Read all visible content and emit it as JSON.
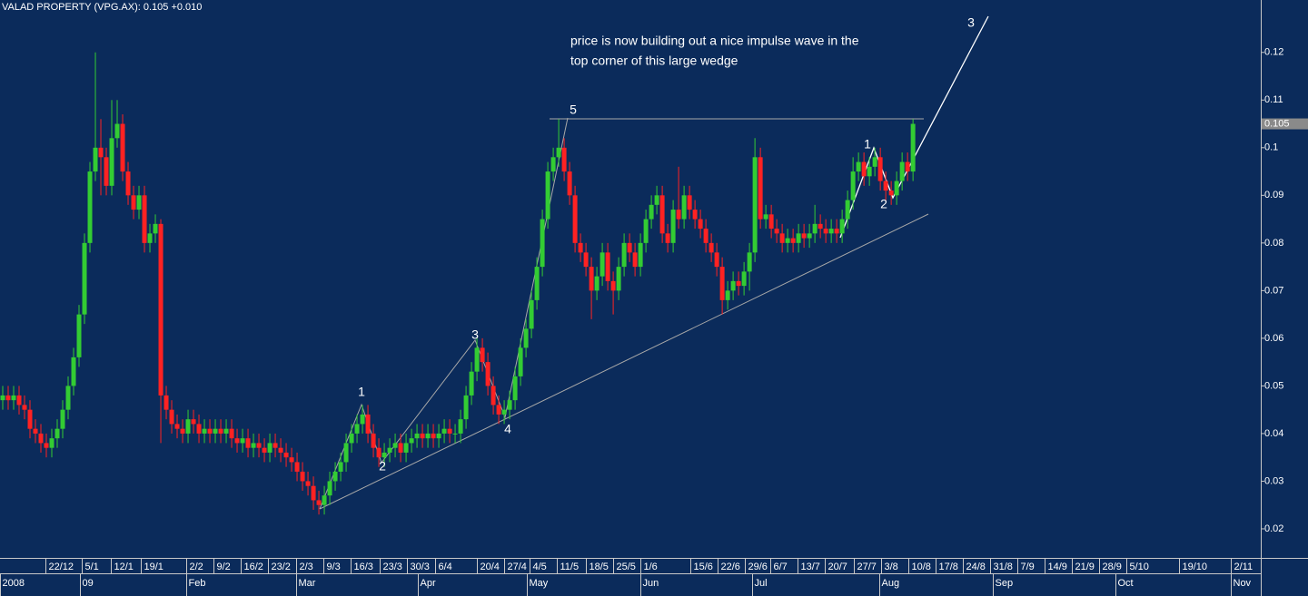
{
  "chart_data": {
    "type": "candlestick",
    "title": "VALAD PROPERTY  (VPG.AX): 0.105 +0.010",
    "last_price": 0.105,
    "note": [
      "price is now building out a nice impulse wave in the",
      "top corner of this large wedge"
    ],
    "wave_labels": [
      "1",
      "2",
      "3",
      "4",
      "5",
      "1",
      "2",
      "3"
    ],
    "up_color": "#33cc33",
    "down_color": "#ff2222",
    "ylim": [
      0.0139,
      0.131
    ],
    "yticks": [
      0.02,
      0.03,
      0.04,
      0.05,
      0.06,
      0.07,
      0.08,
      0.09,
      0.1,
      0.11,
      0.12
    ],
    "xlim": [
      0,
      231.3
    ],
    "xticks": [
      {
        "value": 8.3,
        "label": "22/12"
      },
      {
        "value": 15,
        "label": "5/1"
      },
      {
        "value": 20.3,
        "label": "12/1"
      },
      {
        "value": 25.8,
        "label": "19/1"
      },
      {
        "value": 34.2,
        "label": "2/2"
      },
      {
        "value": 39.2,
        "label": "9/2"
      },
      {
        "value": 44.2,
        "label": "16/2"
      },
      {
        "value": 49.2,
        "label": "23/2"
      },
      {
        "value": 54.3,
        "label": "2/3"
      },
      {
        "value": 59.3,
        "label": "9/3"
      },
      {
        "value": 64.3,
        "label": "16/3"
      },
      {
        "value": 69.7,
        "label": "23/3"
      },
      {
        "value": 74.7,
        "label": "30/3"
      },
      {
        "value": 79.8,
        "label": "6/4"
      },
      {
        "value": 87.5,
        "label": "20/4"
      },
      {
        "value": 92.5,
        "label": "27/4"
      },
      {
        "value": 97.2,
        "label": "4/5"
      },
      {
        "value": 102.2,
        "label": "11/5"
      },
      {
        "value": 107.5,
        "label": "18/5"
      },
      {
        "value": 112.5,
        "label": "25/5"
      },
      {
        "value": 117.5,
        "label": "1/6"
      },
      {
        "value": 126.7,
        "label": "15/6"
      },
      {
        "value": 131.7,
        "label": "22/6"
      },
      {
        "value": 136.7,
        "label": "29/6"
      },
      {
        "value": 141.3,
        "label": "6/7"
      },
      {
        "value": 146.3,
        "label": "13/7"
      },
      {
        "value": 151.3,
        "label": "20/7"
      },
      {
        "value": 156.7,
        "label": "27/7"
      },
      {
        "value": 161.7,
        "label": "3/8"
      },
      {
        "value": 166.7,
        "label": "10/8"
      },
      {
        "value": 171.7,
        "label": "17/8"
      },
      {
        "value": 176.7,
        "label": "24/8"
      },
      {
        "value": 181.7,
        "label": "31/8"
      },
      {
        "value": 186.7,
        "label": "7/9"
      },
      {
        "value": 191.7,
        "label": "14/9"
      },
      {
        "value": 196.7,
        "label": "21/9"
      },
      {
        "value": 201.7,
        "label": "28/9"
      },
      {
        "value": 206.7,
        "label": "5/10"
      },
      {
        "value": 216.3,
        "label": "19/10"
      },
      {
        "value": 225.8,
        "label": "2/11"
      }
    ],
    "month_ticks": [
      {
        "value": 0,
        "label": "2008"
      },
      {
        "value": 14.7,
        "label": "09"
      },
      {
        "value": 34.2,
        "label": "Feb"
      },
      {
        "value": 54.3,
        "label": "Mar"
      },
      {
        "value": 76.7,
        "label": "Apr"
      },
      {
        "value": 96.7,
        "label": "May"
      },
      {
        "value": 117.5,
        "label": "Jun"
      },
      {
        "value": 138,
        "label": "Jul"
      },
      {
        "value": 161.3,
        "label": "Aug"
      },
      {
        "value": 182.2,
        "label": "Sep"
      },
      {
        "value": 204.7,
        "label": "Oct"
      },
      {
        "value": 225.8,
        "label": "Nov"
      }
    ],
    "open": [
      0.047,
      0.048,
      0.047,
      0.048,
      0.046,
      0.045,
      0.041,
      0.04,
      0.038,
      0.037,
      0.039,
      0.041,
      0.045,
      0.05,
      0.056,
      0.065,
      0.08,
      0.095,
      0.1,
      0.098,
      0.092,
      0.102,
      0.105,
      0.095,
      0.09,
      0.087,
      0.09,
      0.08,
      0.082,
      0.084,
      0.048,
      0.045,
      0.042,
      0.041,
      0.04,
      0.043,
      0.042,
      0.04,
      0.041,
      0.04,
      0.041,
      0.04,
      0.041,
      0.039,
      0.038,
      0.039,
      0.037,
      0.038,
      0.037,
      0.036,
      0.038,
      0.037,
      0.036,
      0.035,
      0.034,
      0.032,
      0.03,
      0.029,
      0.026,
      0.025,
      0.027,
      0.03,
      0.032,
      0.034,
      0.038,
      0.04,
      0.042,
      0.044,
      0.04,
      0.037,
      0.035,
      0.036,
      0.037,
      0.038,
      0.036,
      0.038,
      0.039,
      0.04,
      0.039,
      0.04,
      0.039,
      0.04,
      0.041,
      0.04,
      0.04,
      0.043,
      0.048,
      0.053,
      0.058,
      0.055,
      0.05,
      0.046,
      0.044,
      0.045,
      0.047,
      0.052,
      0.058,
      0.062,
      0.068,
      0.075,
      0.085,
      0.095,
      0.098,
      0.1,
      0.095,
      0.09,
      0.08,
      0.078,
      0.075,
      0.07,
      0.073,
      0.078,
      0.072,
      0.07,
      0.075,
      0.08,
      0.078,
      0.075,
      0.08,
      0.085,
      0.088,
      0.09,
      0.082,
      0.08,
      0.087,
      0.085,
      0.09,
      0.087,
      0.085,
      0.083,
      0.08,
      0.078,
      0.075,
      0.068,
      0.07,
      0.072,
      0.071,
      0.074,
      0.078,
      0.098,
      0.085,
      0.086,
      0.083,
      0.082,
      0.08,
      0.081,
      0.08,
      0.082,
      0.081,
      0.082,
      0.084,
      0.083,
      0.082,
      0.083,
      0.082,
      0.085,
      0.089,
      0.095,
      0.097,
      0.094,
      0.096,
      0.098,
      0.093,
      0.091,
      0.09,
      0.093,
      0.097,
      0.095
    ],
    "high": [
      0.05,
      0.05,
      0.05,
      0.05,
      0.048,
      0.047,
      0.043,
      0.042,
      0.04,
      0.041,
      0.043,
      0.047,
      0.052,
      0.058,
      0.067,
      0.082,
      0.097,
      0.12,
      0.106,
      0.1,
      0.11,
      0.11,
      0.107,
      0.097,
      0.092,
      0.092,
      0.092,
      0.084,
      0.086,
      0.085,
      0.05,
      0.047,
      0.044,
      0.043,
      0.045,
      0.045,
      0.044,
      0.043,
      0.043,
      0.043,
      0.043,
      0.043,
      0.043,
      0.041,
      0.041,
      0.041,
      0.04,
      0.04,
      0.039,
      0.04,
      0.04,
      0.039,
      0.038,
      0.037,
      0.036,
      0.034,
      0.032,
      0.031,
      0.028,
      0.029,
      0.032,
      0.034,
      0.036,
      0.04,
      0.042,
      0.044,
      0.046,
      0.046,
      0.042,
      0.039,
      0.038,
      0.039,
      0.04,
      0.04,
      0.04,
      0.041,
      0.042,
      0.042,
      0.042,
      0.042,
      0.042,
      0.043,
      0.043,
      0.042,
      0.045,
      0.05,
      0.055,
      0.06,
      0.06,
      0.057,
      0.052,
      0.048,
      0.047,
      0.049,
      0.054,
      0.06,
      0.064,
      0.07,
      0.077,
      0.087,
      0.097,
      0.1,
      0.106,
      0.102,
      0.097,
      0.092,
      0.082,
      0.08,
      0.077,
      0.075,
      0.08,
      0.08,
      0.074,
      0.077,
      0.082,
      0.082,
      0.08,
      0.082,
      0.087,
      0.09,
      0.092,
      0.092,
      0.084,
      0.089,
      0.096,
      0.092,
      0.092,
      0.089,
      0.087,
      0.085,
      0.082,
      0.08,
      0.077,
      0.072,
      0.074,
      0.074,
      0.076,
      0.08,
      0.102,
      0.1,
      0.088,
      0.088,
      0.085,
      0.084,
      0.083,
      0.083,
      0.084,
      0.084,
      0.084,
      0.088,
      0.086,
      0.085,
      0.085,
      0.085,
      0.087,
      0.091,
      0.098,
      0.099,
      0.099,
      0.098,
      0.1,
      0.1,
      0.095,
      0.093,
      0.095,
      0.099,
      0.099,
      0.106
    ],
    "low": [
      0.045,
      0.045,
      0.045,
      0.044,
      0.043,
      0.039,
      0.038,
      0.036,
      0.035,
      0.035,
      0.037,
      0.039,
      0.043,
      0.048,
      0.054,
      0.063,
      0.078,
      0.093,
      0.09,
      0.09,
      0.09,
      0.1,
      0.093,
      0.088,
      0.085,
      0.085,
      0.078,
      0.078,
      0.08,
      0.038,
      0.043,
      0.04,
      0.039,
      0.038,
      0.038,
      0.04,
      0.038,
      0.038,
      0.038,
      0.038,
      0.038,
      0.038,
      0.037,
      0.036,
      0.036,
      0.035,
      0.035,
      0.035,
      0.034,
      0.034,
      0.035,
      0.034,
      0.033,
      0.032,
      0.03,
      0.028,
      0.027,
      0.024,
      0.023,
      0.023,
      0.025,
      0.028,
      0.03,
      0.032,
      0.036,
      0.038,
      0.04,
      0.038,
      0.035,
      0.033,
      0.033,
      0.034,
      0.035,
      0.034,
      0.034,
      0.036,
      0.037,
      0.037,
      0.037,
      0.037,
      0.037,
      0.038,
      0.038,
      0.038,
      0.038,
      0.041,
      0.046,
      0.051,
      0.053,
      0.048,
      0.044,
      0.042,
      0.042,
      0.043,
      0.045,
      0.05,
      0.056,
      0.06,
      0.066,
      0.073,
      0.083,
      0.093,
      0.096,
      0.093,
      0.088,
      0.078,
      0.076,
      0.073,
      0.064,
      0.068,
      0.071,
      0.07,
      0.065,
      0.068,
      0.073,
      0.076,
      0.073,
      0.073,
      0.078,
      0.083,
      0.086,
      0.08,
      0.078,
      0.078,
      0.083,
      0.083,
      0.085,
      0.083,
      0.081,
      0.078,
      0.076,
      0.073,
      0.065,
      0.066,
      0.068,
      0.069,
      0.069,
      0.07,
      0.076,
      0.083,
      0.083,
      0.081,
      0.08,
      0.078,
      0.078,
      0.078,
      0.078,
      0.079,
      0.079,
      0.08,
      0.081,
      0.08,
      0.08,
      0.08,
      0.08,
      0.083,
      0.087,
      0.093,
      0.092,
      0.092,
      0.094,
      0.091,
      0.089,
      0.088,
      0.088,
      0.091,
      0.093,
      0.093
    ],
    "close": [
      0.048,
      0.047,
      0.048,
      0.046,
      0.045,
      0.041,
      0.04,
      0.038,
      0.037,
      0.039,
      0.041,
      0.045,
      0.05,
      0.056,
      0.065,
      0.08,
      0.095,
      0.1,
      0.098,
      0.092,
      0.102,
      0.105,
      0.095,
      0.09,
      0.087,
      0.09,
      0.08,
      0.082,
      0.084,
      0.048,
      0.045,
      0.042,
      0.041,
      0.04,
      0.043,
      0.042,
      0.04,
      0.041,
      0.04,
      0.041,
      0.04,
      0.041,
      0.039,
      0.038,
      0.039,
      0.037,
      0.038,
      0.037,
      0.036,
      0.038,
      0.037,
      0.036,
      0.035,
      0.034,
      0.032,
      0.03,
      0.029,
      0.026,
      0.025,
      0.027,
      0.03,
      0.032,
      0.034,
      0.038,
      0.04,
      0.042,
      0.044,
      0.04,
      0.037,
      0.035,
      0.036,
      0.037,
      0.038,
      0.036,
      0.038,
      0.039,
      0.04,
      0.039,
      0.04,
      0.039,
      0.04,
      0.041,
      0.04,
      0.04,
      0.043,
      0.048,
      0.053,
      0.058,
      0.055,
      0.05,
      0.046,
      0.044,
      0.045,
      0.047,
      0.052,
      0.058,
      0.062,
      0.068,
      0.075,
      0.085,
      0.095,
      0.098,
      0.1,
      0.095,
      0.09,
      0.08,
      0.078,
      0.075,
      0.07,
      0.073,
      0.078,
      0.072,
      0.07,
      0.075,
      0.08,
      0.078,
      0.075,
      0.08,
      0.085,
      0.088,
      0.09,
      0.082,
      0.08,
      0.087,
      0.085,
      0.09,
      0.087,
      0.085,
      0.083,
      0.08,
      0.078,
      0.075,
      0.068,
      0.07,
      0.072,
      0.071,
      0.074,
      0.078,
      0.098,
      0.085,
      0.086,
      0.083,
      0.082,
      0.08,
      0.081,
      0.08,
      0.082,
      0.081,
      0.082,
      0.084,
      0.083,
      0.082,
      0.083,
      0.082,
      0.085,
      0.089,
      0.095,
      0.097,
      0.094,
      0.096,
      0.098,
      0.093,
      0.091,
      0.09,
      0.093,
      0.097,
      0.095,
      0.105
    ]
  }
}
